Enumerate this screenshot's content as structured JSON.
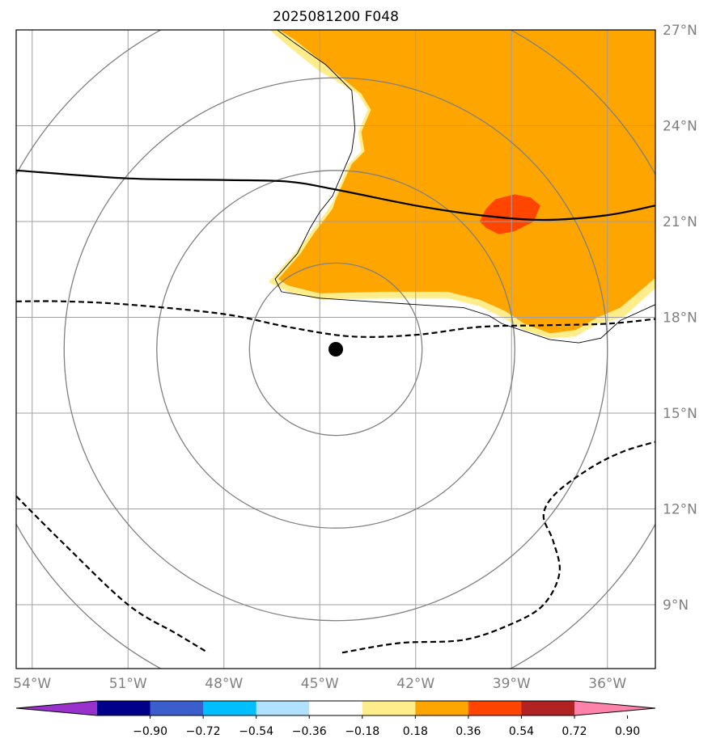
{
  "title": "2025081200 F048",
  "chart_data": {
    "type": "map-contour",
    "title": "2025081200 F048",
    "lon_range": [
      -54.5,
      -34.5
    ],
    "lat_range": [
      7,
      27
    ],
    "lon_ticks": [
      "54°W",
      "51°W",
      "48°W",
      "45°W",
      "42°W",
      "39°W",
      "36°W"
    ],
    "lat_ticks": [
      "9°N",
      "12°N",
      "15°N",
      "18°N",
      "21°N",
      "24°N",
      "27°N"
    ],
    "center_marker": {
      "lon": -44.5,
      "lat": 17.0
    },
    "range_rings_deg": [
      2.7,
      5.6,
      8.5,
      11.4
    ],
    "grid": true,
    "colorbar": {
      "levels": [
        -0.9,
        -0.72,
        -0.54,
        -0.36,
        -0.18,
        0.18,
        0.36,
        0.54,
        0.72,
        0.9
      ],
      "labels": [
        "−0.90",
        "−0.72",
        "−0.54",
        "−0.36",
        "−0.18",
        "0.18",
        "0.36",
        "0.54",
        "0.72",
        "0.90"
      ],
      "colors": [
        "#9932CC",
        "#00008B",
        "#3A5FCD",
        "#00BFFF",
        "#B0E2FF",
        "#FFFFFF",
        "#FFEC8B",
        "#FFA500",
        "#FF4500",
        "#B22222",
        "#FF82AB"
      ],
      "extend": "both"
    },
    "filled_regions": [
      {
        "level_min": 0.18,
        "level_max": 0.36,
        "color": "#FFEC8B",
        "outline": [
          [
            -46.8,
            27.2
          ],
          [
            -34.3,
            27.2
          ],
          [
            -34.3,
            19.1
          ],
          [
            -35.5,
            18.0
          ],
          [
            -36.3,
            17.8
          ],
          [
            -37.0,
            17.4
          ],
          [
            -37.8,
            17.35
          ],
          [
            -38.6,
            17.6
          ],
          [
            -39.3,
            18.0
          ],
          [
            -40.0,
            18.35
          ],
          [
            -41.0,
            18.6
          ],
          [
            -43.0,
            18.6
          ],
          [
            -45.0,
            18.55
          ],
          [
            -46.0,
            18.8
          ],
          [
            -46.6,
            19.1
          ],
          [
            -45.8,
            20.0
          ],
          [
            -45.4,
            20.5
          ],
          [
            -44.8,
            21.3
          ],
          [
            -44.6,
            21.6
          ],
          [
            -44.1,
            22.8
          ],
          [
            -43.7,
            23.2
          ],
          [
            -43.8,
            23.8
          ],
          [
            -43.5,
            24.5
          ],
          [
            -43.8,
            25.0
          ],
          [
            -45.0,
            25.7
          ],
          [
            -46.0,
            26.5
          ]
        ]
      },
      {
        "level_min": 0.36,
        "level_max": 0.54,
        "color": "#FFA500",
        "outline": [
          [
            -46.6,
            27.2
          ],
          [
            -34.3,
            27.2
          ],
          [
            -34.3,
            19.4
          ],
          [
            -35.6,
            18.3
          ],
          [
            -36.3,
            18.0
          ],
          [
            -37.0,
            17.6
          ],
          [
            -37.8,
            17.5
          ],
          [
            -38.6,
            17.8
          ],
          [
            -39.2,
            18.2
          ],
          [
            -40.0,
            18.55
          ],
          [
            -41.0,
            18.8
          ],
          [
            -43.0,
            18.8
          ],
          [
            -45.0,
            18.75
          ],
          [
            -46.0,
            19.0
          ],
          [
            -46.3,
            19.2
          ],
          [
            -45.6,
            20.0
          ],
          [
            -45.2,
            20.6
          ],
          [
            -44.6,
            21.4
          ],
          [
            -44.5,
            21.7
          ],
          [
            -44.0,
            22.8
          ],
          [
            -43.6,
            23.2
          ],
          [
            -43.7,
            23.8
          ],
          [
            -43.4,
            24.5
          ],
          [
            -43.7,
            25.0
          ],
          [
            -44.8,
            25.9
          ],
          [
            -45.8,
            26.7
          ]
        ]
      },
      {
        "level_min": 0.54,
        "level_max": 0.72,
        "color": "#FF4500",
        "outline": [
          [
            -39.5,
            21.7
          ],
          [
            -38.9,
            21.85
          ],
          [
            -38.4,
            21.75
          ],
          [
            -38.1,
            21.5
          ],
          [
            -38.3,
            21.0
          ],
          [
            -38.9,
            20.7
          ],
          [
            -39.4,
            20.6
          ],
          [
            -39.8,
            20.8
          ],
          [
            -40.0,
            21.0
          ],
          [
            -39.8,
            21.4
          ]
        ]
      }
    ],
    "contour_lines": [
      {
        "style": "solid",
        "points": [
          [
            -54.5,
            22.6
          ],
          [
            -51,
            22.35
          ],
          [
            -48,
            22.3
          ],
          [
            -46,
            22.25
          ],
          [
            -44.5,
            22.0
          ],
          [
            -42,
            21.5
          ],
          [
            -40,
            21.2
          ],
          [
            -38,
            21.05
          ],
          [
            -36,
            21.2
          ],
          [
            -34.5,
            21.5
          ]
        ]
      },
      {
        "style": "dashed",
        "points": [
          [
            -54.5,
            18.5
          ],
          [
            -53,
            18.5
          ],
          [
            -51,
            18.4
          ],
          [
            -48,
            18.1
          ],
          [
            -46,
            17.7
          ],
          [
            -44,
            17.4
          ],
          [
            -42,
            17.45
          ],
          [
            -40,
            17.7
          ],
          [
            -38,
            17.75
          ],
          [
            -36,
            17.8
          ],
          [
            -34.5,
            17.95
          ]
        ]
      },
      {
        "style": "dashed",
        "points": [
          [
            -54.5,
            12.4
          ],
          [
            -53,
            10.9
          ],
          [
            -51,
            9.0
          ],
          [
            -49.5,
            8.1
          ],
          [
            -48.5,
            7.5
          ]
        ]
      },
      {
        "style": "dashed",
        "points": [
          [
            -44.3,
            7.5
          ],
          [
            -42.5,
            7.8
          ],
          [
            -40.5,
            7.9
          ],
          [
            -39.0,
            8.4
          ],
          [
            -38.0,
            9.0
          ],
          [
            -37.5,
            10.0
          ],
          [
            -37.7,
            11.0
          ],
          [
            -38.0,
            11.8
          ],
          [
            -37.6,
            12.5
          ],
          [
            -36.5,
            13.3
          ],
          [
            -35.5,
            13.8
          ],
          [
            -34.5,
            14.1
          ]
        ]
      }
    ],
    "coastline": [
      [
        -46.6,
        27.2
      ],
      [
        -45.8,
        26.6
      ],
      [
        -44.8,
        25.9
      ],
      [
        -44.0,
        25.1
      ],
      [
        -43.9,
        23.9
      ],
      [
        -44.0,
        23.2
      ],
      [
        -44.3,
        22.5
      ],
      [
        -44.6,
        21.8
      ],
      [
        -45.0,
        21.3
      ],
      [
        -45.3,
        20.8
      ],
      [
        -45.7,
        20.0
      ],
      [
        -46.4,
        19.2
      ],
      [
        -46.2,
        18.8
      ],
      [
        -45.0,
        18.6
      ],
      [
        -43.5,
        18.5
      ],
      [
        -42.0,
        18.4
      ],
      [
        -40.5,
        18.3
      ],
      [
        -39.7,
        18.05
      ],
      [
        -39.3,
        17.8
      ],
      [
        -38.7,
        17.6
      ],
      [
        -37.8,
        17.3
      ],
      [
        -36.9,
        17.2
      ],
      [
        -36.2,
        17.35
      ],
      [
        -35.6,
        17.9
      ],
      [
        -34.5,
        18.4
      ]
    ]
  }
}
